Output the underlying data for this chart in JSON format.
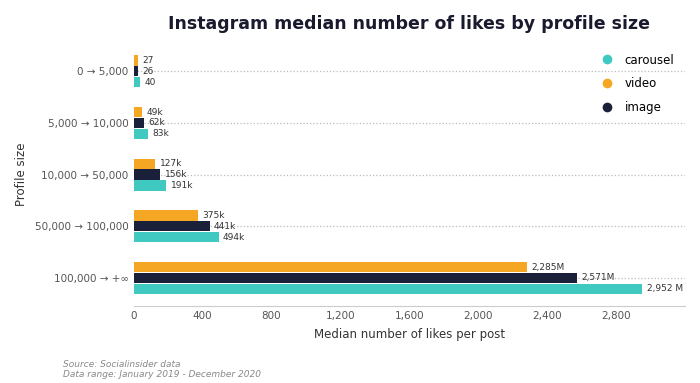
{
  "title": "Instagram median number of likes by profile size",
  "xlabel": "Median number of likes per post",
  "ylabel": "Profile size",
  "categories": [
    "100,000 → +∞",
    "50,000 → 100,000",
    "10,000 → 50,000",
    "5,000 → 10,000",
    "0 → 5,000"
  ],
  "video": [
    2285,
    375,
    127,
    49,
    27
  ],
  "image": [
    2571,
    441,
    156,
    62,
    26
  ],
  "carousel": [
    2952,
    494,
    191,
    83,
    40
  ],
  "video_labels": [
    "2,285M",
    "375k",
    "127k",
    "49k",
    "27"
  ],
  "image_labels": [
    "2,571M",
    "441k",
    "156k",
    "62k",
    "26"
  ],
  "carousel_labels": [
    "2,952 M",
    "494k",
    "191k",
    "83k",
    "40"
  ],
  "color_video": "#F5A623",
  "color_image": "#1A1F3A",
  "color_carousel": "#40C9C0",
  "xlim": [
    0,
    3200
  ],
  "xticks": [
    0,
    400,
    800,
    1200,
    1600,
    2000,
    2400,
    2800
  ],
  "xtick_labels": [
    "0",
    "400",
    "800",
    "1,200",
    "1,600",
    "2,000",
    "2,400",
    "2,800"
  ],
  "source_text": "Source: Socialinsider data\nData range: January 2019 - December 2020",
  "background_color": "#FFFFFF",
  "legend_labels": [
    "carousel",
    "video",
    "image"
  ],
  "legend_colors": [
    "#40C9C0",
    "#F5A623",
    "#1A1F3A"
  ],
  "bar_height": 0.2,
  "bar_spacing": 0.21
}
